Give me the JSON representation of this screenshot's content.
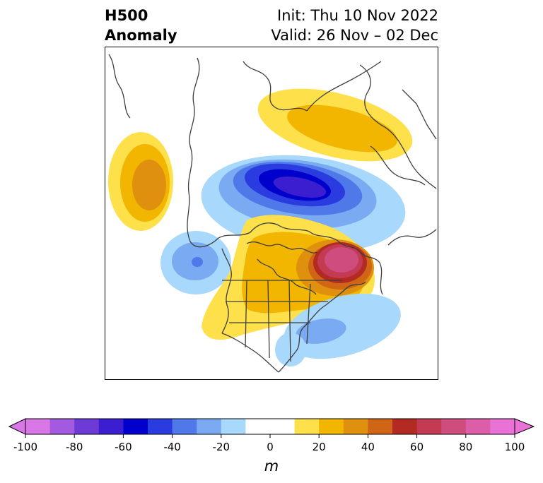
{
  "title": {
    "line1": "H500",
    "line2": "Anomaly",
    "init": "Init: Thu 10 Nov 2022",
    "valid": "Valid: 26 Nov – 02 Dec"
  },
  "colorbar": {
    "unit": "m",
    "tick_labels": [
      "-100",
      "-80",
      "-60",
      "-40",
      "-20",
      "0",
      "20",
      "40",
      "60",
      "80",
      "100"
    ],
    "colors": [
      "#d977e6",
      "#a35ae0",
      "#6d3ad6",
      "#3b1ecf",
      "#0000cc",
      "#2a3ce0",
      "#4f78e8",
      "#79aaf2",
      "#a8d8fb",
      "#ffffff",
      "#ffffff",
      "#fde04a",
      "#f2b600",
      "#e0900f",
      "#cf6515",
      "#b22a22",
      "#c43a52",
      "#cf4d7e",
      "#dd5ea8",
      "#ea72d6"
    ],
    "levels": [
      -100,
      -90,
      -80,
      -70,
      -60,
      -50,
      -40,
      -30,
      -20,
      -10,
      0,
      10,
      20,
      30,
      40,
      50,
      60,
      70,
      80,
      90,
      100
    ]
  }
}
